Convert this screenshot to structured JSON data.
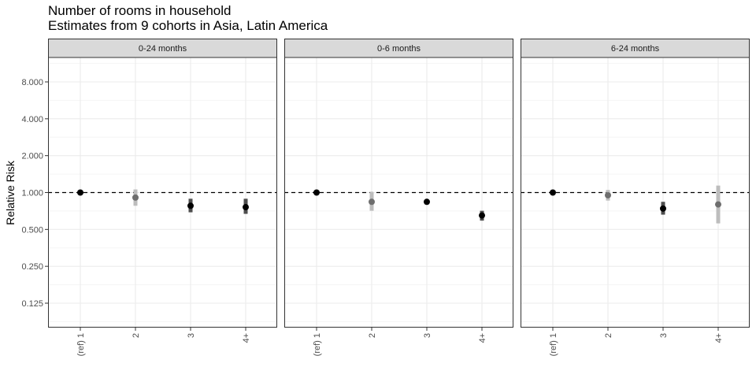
{
  "chart_data": {
    "type": "scatter",
    "title": "Number of rooms in household",
    "subtitle": "Estimates from 9 cohorts in Asia, Latin America",
    "xlabel": "",
    "ylabel": "Relative Risk",
    "y_scale": "log",
    "ylim": [
      0.1,
      10.5
    ],
    "y_ticks": [
      "0.125",
      "0.250",
      "0.500",
      "1.000",
      "2.000",
      "4.000",
      "8.000"
    ],
    "reference_line": 1.0,
    "grid": true,
    "categories": [
      "(ref) 1",
      "2",
      "3",
      "4+"
    ],
    "panels": [
      {
        "label": "0-24 months",
        "points": [
          {
            "category": "(ref) 1",
            "rr": 1.0,
            "lower": 1.0,
            "upper": 1.0,
            "shade": "dark"
          },
          {
            "category": "2",
            "rr": 0.91,
            "lower": 0.78,
            "upper": 1.06,
            "shade": "light"
          },
          {
            "category": "3",
            "rr": 0.78,
            "lower": 0.69,
            "upper": 0.89,
            "shade": "dark"
          },
          {
            "category": "4+",
            "rr": 0.76,
            "lower": 0.67,
            "upper": 0.89,
            "shade": "dark"
          }
        ]
      },
      {
        "label": "0-6 months",
        "points": [
          {
            "category": "(ref) 1",
            "rr": 1.0,
            "lower": 1.0,
            "upper": 1.0,
            "shade": "dark"
          },
          {
            "category": "2",
            "rr": 0.84,
            "lower": 0.71,
            "upper": 1.01,
            "shade": "light"
          },
          {
            "category": "3",
            "rr": 0.84,
            "lower": 0.8,
            "upper": 0.88,
            "shade": "dark"
          },
          {
            "category": "4+",
            "rr": 0.65,
            "lower": 0.59,
            "upper": 0.71,
            "shade": "dark"
          }
        ]
      },
      {
        "label": "6-24 months",
        "points": [
          {
            "category": "(ref) 1",
            "rr": 1.0,
            "lower": 1.0,
            "upper": 1.0,
            "shade": "dark"
          },
          {
            "category": "2",
            "rr": 0.95,
            "lower": 0.86,
            "upper": 1.05,
            "shade": "light"
          },
          {
            "category": "3",
            "rr": 0.74,
            "lower": 0.66,
            "upper": 0.84,
            "shade": "dark"
          },
          {
            "category": "4+",
            "rr": 0.8,
            "lower": 0.56,
            "upper": 1.14,
            "shade": "light"
          }
        ]
      }
    ]
  },
  "colors": {
    "dark_point": "#000000",
    "dark_ci": "#4d4d4d",
    "light_point": "#6e6e6e",
    "light_ci": "#bdbdbd",
    "strip_fill": "#d9d9d9",
    "panel_border": "#333333",
    "major_grid": "#ebebeb",
    "minor_grid": "#f5f5f5"
  }
}
